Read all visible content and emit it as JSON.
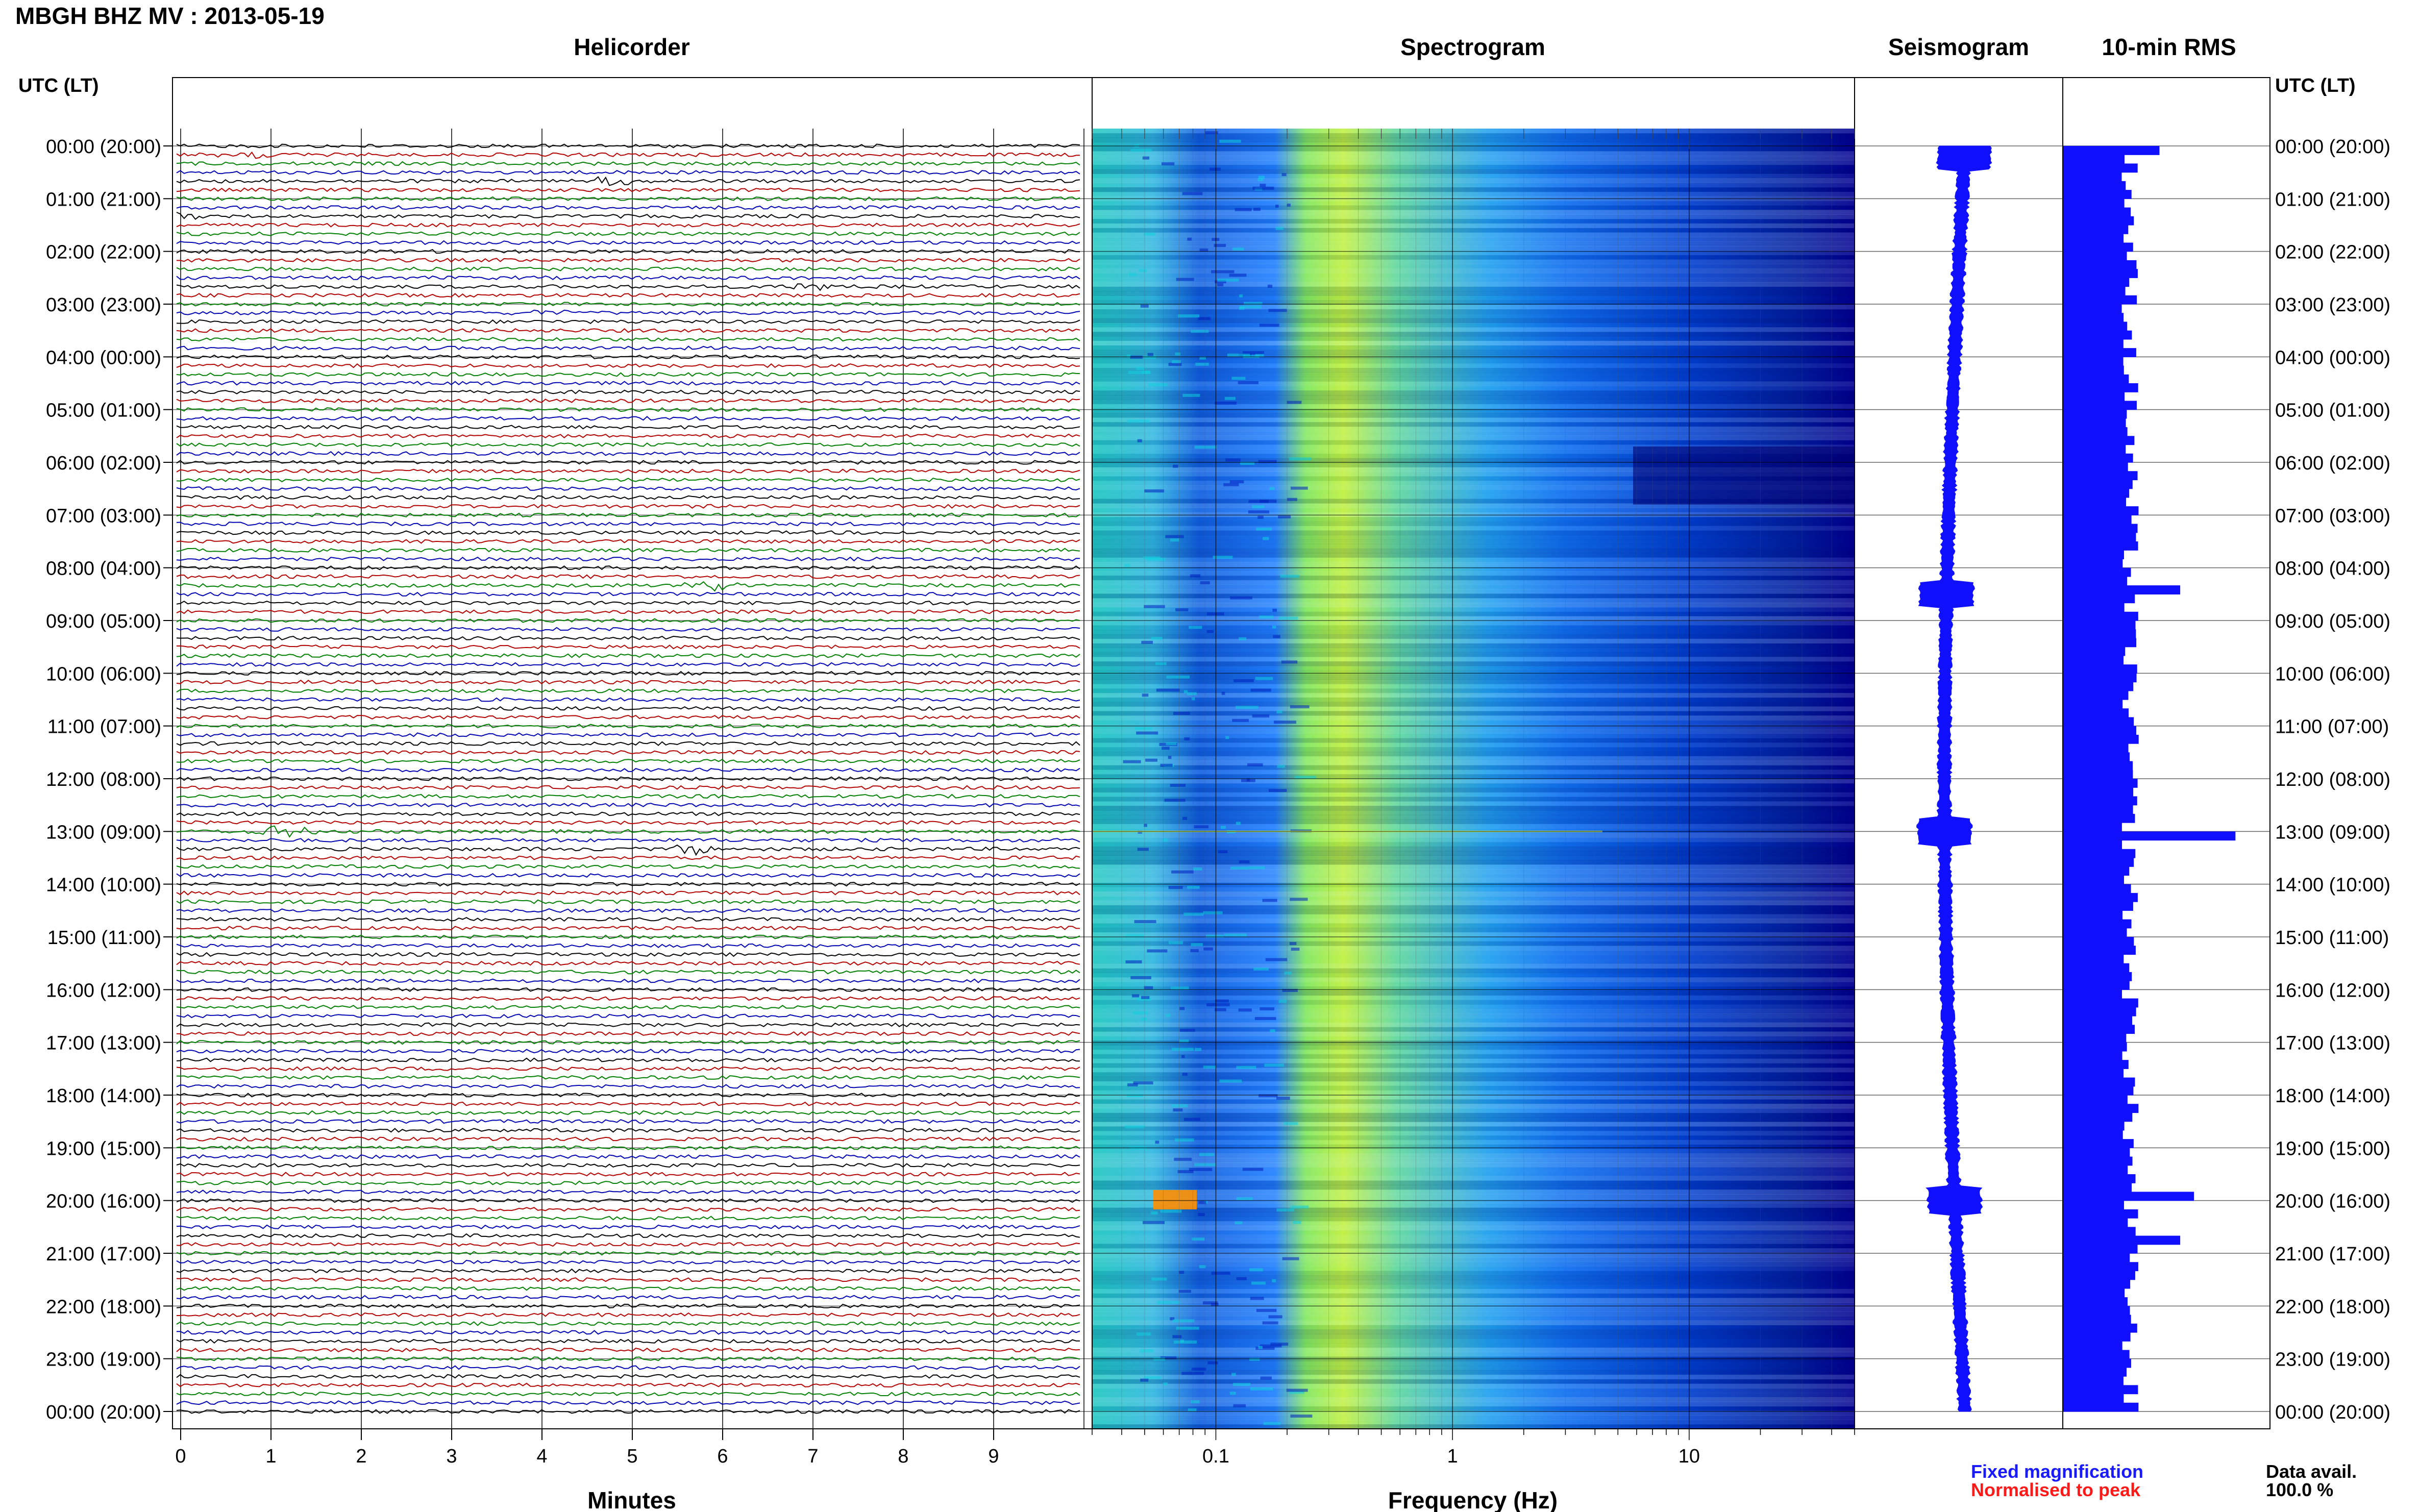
{
  "header": {
    "title": "MBGH BHZ MV : 2013-05-19"
  },
  "panels": {
    "helicorder": "Helicorder",
    "spectrogram": "Spectrogram",
    "seismogram": "Seismogram",
    "rms": "10-min RMS"
  },
  "axis_labels": {
    "time_left": "UTC (LT)",
    "time_right": "UTC (LT)",
    "minutes": "Minutes",
    "frequency": "Frequency (Hz)"
  },
  "legend": {
    "fixed": "Fixed magnification",
    "normalised": "Normalised to peak",
    "fixed_color": "#1a1aff",
    "normalised_color": "#ff1a1a"
  },
  "data_avail": {
    "label": "Data avail.",
    "value": "100.0 %"
  },
  "colors": {
    "trace_cycle": [
      "#000000",
      "#b30000",
      "#008000",
      "#0000b3"
    ],
    "spectrogram_low": "#00008b",
    "spectrogram_mid": "#00a0ff",
    "spectrogram_high": "#ffff00",
    "rms_bar": "#1010ff"
  },
  "chart_data": [
    {
      "type": "line",
      "name": "helicorder",
      "title": "Helicorder",
      "xlabel": "Minutes",
      "x_ticks": [
        0,
        1,
        2,
        3,
        4,
        5,
        6,
        7,
        8,
        9
      ],
      "xlim": [
        0,
        10
      ],
      "rows_per_hour": 6,
      "y_tick_labels": [
        "00:00 (20:00)",
        "01:00 (21:00)",
        "02:00 (22:00)",
        "03:00 (23:00)",
        "04:00 (00:00)",
        "05:00 (01:00)",
        "06:00 (02:00)",
        "07:00 (03:00)",
        "08:00 (04:00)",
        "09:00 (05:00)",
        "10:00 (06:00)",
        "11:00 (07:00)",
        "12:00 (08:00)",
        "13:00 (09:00)",
        "14:00 (10:00)",
        "15:00 (11:00)",
        "16:00 (12:00)",
        "17:00 (13:00)",
        "18:00 (14:00)",
        "19:00 (15:00)",
        "20:00 (16:00)",
        "21:00 (17:00)",
        "22:00 (18:00)",
        "23:00 (19:00)",
        "00:00 (20:00)"
      ],
      "events": [
        {
          "row": 1,
          "minute": 0.8,
          "amp": 0.6
        },
        {
          "row": 4,
          "minute": 4.8,
          "amp": 1.0
        },
        {
          "row": 8,
          "minute": 0.1,
          "amp": 0.6
        },
        {
          "row": 16,
          "minute": 7.0,
          "amp": 0.6
        },
        {
          "row": 19,
          "minute": 4.0,
          "amp": 0.5
        },
        {
          "row": 50,
          "minute": 5.9,
          "amp": 1.0
        },
        {
          "row": 78,
          "minute": 1.2,
          "amp": 1.0
        },
        {
          "row": 80,
          "minute": 5.7,
          "amp": 1.0
        }
      ]
    },
    {
      "type": "heatmap",
      "name": "spectrogram",
      "title": "Spectrogram",
      "xlabel": "Frequency (Hz)",
      "x_scale": "log",
      "x_tick_labels": [
        "0.1",
        "1",
        "10"
      ],
      "xlim": [
        0.03,
        50
      ]
    },
    {
      "type": "line",
      "name": "seismogram",
      "title": "Seismogram",
      "spikes_at_hour": [
        0.2,
        8.5,
        13.0,
        20.0
      ]
    },
    {
      "type": "bar",
      "name": "rms",
      "title": "10-min RMS",
      "y_tick_labels": [
        "00:00 (20:00)",
        "01:00 (21:00)",
        "02:00 (22:00)",
        "03:00 (23:00)",
        "04:00 (00:00)",
        "05:00 (01:00)",
        "06:00 (02:00)",
        "07:00 (03:00)",
        "08:00 (04:00)",
        "09:00 (05:00)",
        "10:00 (06:00)",
        "11:00 (07:00)",
        "12:00 (08:00)",
        "13:00 (09:00)",
        "14:00 (10:00)",
        "15:00 (11:00)",
        "16:00 (12:00)",
        "17:00 (13:00)",
        "18:00 (14:00)",
        "19:00 (15:00)",
        "20:00 (16:00)",
        "21:00 (17:00)",
        "22:00 (18:00)",
        "23:00 (19:00)",
        "00:00 (20:00)"
      ],
      "peaks": [
        {
          "hour": 0.0,
          "value": 1.4
        },
        {
          "hour": 8.4,
          "value": 1.7
        },
        {
          "hour": 13.0,
          "value": 2.5
        },
        {
          "hour": 19.9,
          "value": 1.9
        },
        {
          "hour": 20.6,
          "value": 1.7
        }
      ],
      "baseline_value": 1.0
    }
  ]
}
